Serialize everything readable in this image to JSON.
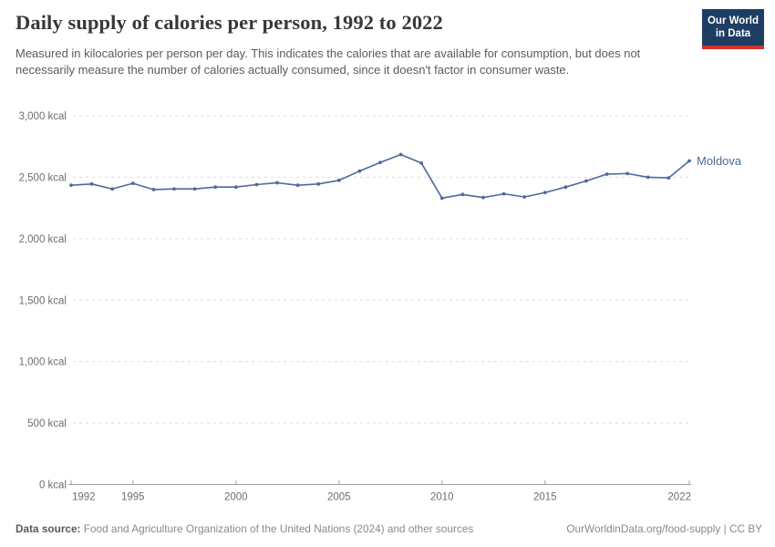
{
  "header": {
    "title": "Daily supply of calories per person, 1992 to 2022",
    "subtitle": "Measured in kilocalories per person per day. This indicates the calories that are available for consumption, but does not necessarily measure the number of calories actually consumed, since it doesn't factor in consumer waste."
  },
  "logo": {
    "line1": "Our World",
    "line2": "in Data"
  },
  "chart_data": {
    "type": "line",
    "title": "Daily supply of calories per person, 1992 to 2022",
    "xlabel": "",
    "ylabel": "kcal",
    "xlim": [
      1992,
      2022
    ],
    "ylim": [
      0,
      3000
    ],
    "grid": true,
    "legend_position": "end-of-line",
    "x": [
      1992,
      1993,
      1994,
      1995,
      1996,
      1997,
      1998,
      1999,
      2000,
      2001,
      2002,
      2003,
      2004,
      2005,
      2006,
      2007,
      2008,
      2009,
      2010,
      2011,
      2012,
      2013,
      2014,
      2015,
      2016,
      2017,
      2018,
      2019,
      2020,
      2021,
      2022
    ],
    "series": [
      {
        "name": "Moldova",
        "values": [
          2435,
          2445,
          2405,
          2450,
          2400,
          2405,
          2405,
          2420,
          2420,
          2440,
          2455,
          2435,
          2445,
          2475,
          2550,
          2620,
          2685,
          2615,
          2330,
          2360,
          2335,
          2365,
          2340,
          2375,
          2420,
          2470,
          2525,
          2530,
          2500,
          2495,
          2633
        ]
      }
    ],
    "y_ticks": [
      {
        "value": 0,
        "label": "0 kcal"
      },
      {
        "value": 500,
        "label": "500 kcal"
      },
      {
        "value": 1000,
        "label": "1,000 kcal"
      },
      {
        "value": 1500,
        "label": "1,500 kcal"
      },
      {
        "value": 2000,
        "label": "2,000 kcal"
      },
      {
        "value": 2500,
        "label": "2,500 kcal"
      },
      {
        "value": 3000,
        "label": "3,000 kcal"
      }
    ],
    "x_ticks": [
      {
        "value": 1992,
        "label": "1992"
      },
      {
        "value": 1995,
        "label": "1995"
      },
      {
        "value": 2000,
        "label": "2000"
      },
      {
        "value": 2005,
        "label": "2005"
      },
      {
        "value": 2010,
        "label": "2010"
      },
      {
        "value": 2015,
        "label": "2015"
      },
      {
        "value": 2022,
        "label": "2022"
      }
    ]
  },
  "footer": {
    "source_label": "Data source:",
    "source_text": "Food and Agriculture Organization of the United Nations (2024) and other sources",
    "link": "OurWorldinData.org/food-supply | CC BY"
  },
  "colors": {
    "line": "#4c6a9c",
    "grid": "#dcdcdc",
    "axis": "#a1a1a1",
    "tick_text": "#6e6e6e",
    "title_text": "#383838",
    "subtitle_text": "#5b5b5b",
    "footer_text": "#8a8a8a",
    "logo_bg": "#1d3d63",
    "logo_red": "#cf342c"
  }
}
